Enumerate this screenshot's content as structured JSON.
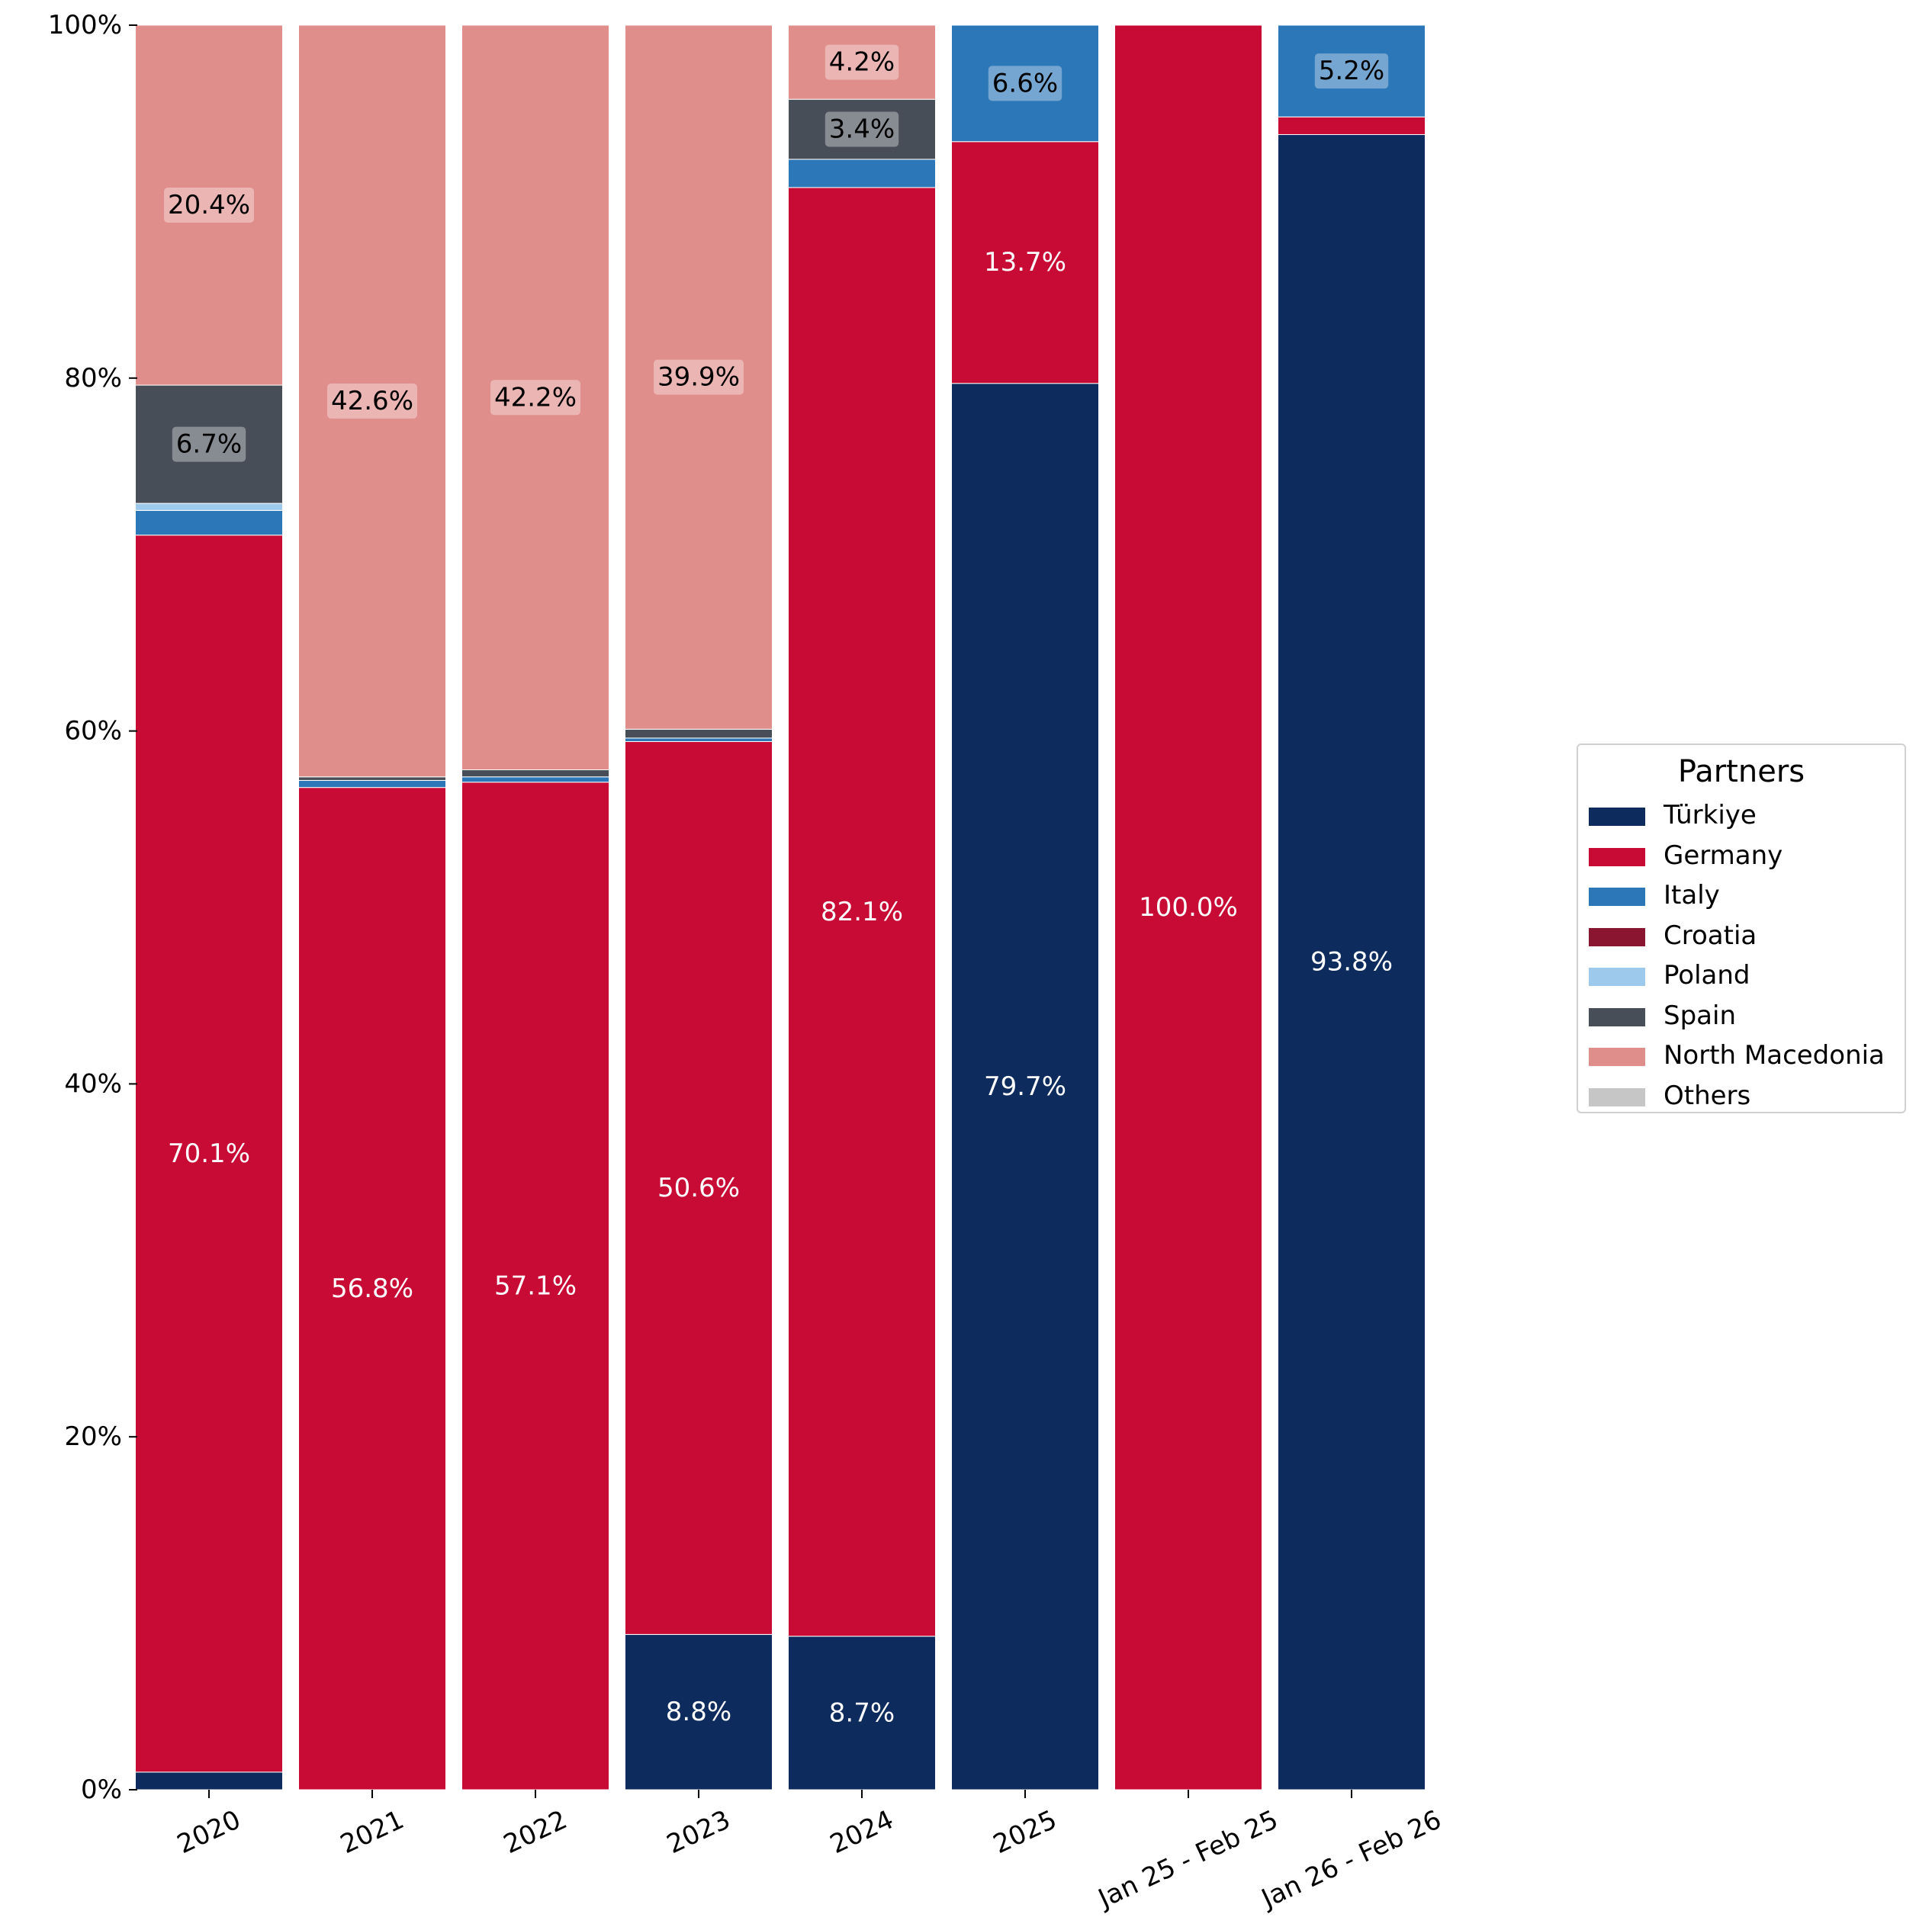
{
  "chart_data": {
    "type": "bar",
    "stacked": true,
    "normalized": true,
    "categories": [
      "2020",
      "2021",
      "2022",
      "2023",
      "2024",
      "2025",
      "Jan 25 - Feb 25",
      "Jan 26 - Feb 26"
    ],
    "ylim": [
      0,
      100
    ],
    "y_ticks": [
      "0%",
      "20%",
      "40%",
      "60%",
      "80%",
      "100%"
    ],
    "y_tick_values": [
      0,
      20,
      40,
      60,
      80,
      100
    ],
    "x_tick_rotation_deg": 25,
    "grid": false,
    "legend": {
      "title": "Partners",
      "position": "right"
    },
    "series": [
      {
        "name": "Türkiye",
        "color": "#0d2b5c",
        "label_color": "#ffffff",
        "values": [
          1.0,
          0.0,
          0.0,
          8.8,
          8.7,
          79.7,
          0.0,
          93.8
        ]
      },
      {
        "name": "Germany",
        "color": "#c80b34",
        "label_color": "#ffffff",
        "values": [
          70.1,
          56.8,
          57.1,
          50.6,
          82.1,
          13.7,
          100.0,
          1.0
        ]
      },
      {
        "name": "Italy",
        "color": "#2c77b8",
        "label_color": "#000000",
        "values": [
          1.4,
          0.4,
          0.3,
          0.2,
          1.6,
          6.6,
          0.0,
          5.2
        ]
      },
      {
        "name": "Croatia",
        "color": "#8a1530",
        "label_color": "#ffffff",
        "values": [
          0.0,
          0.0,
          0.0,
          0.0,
          0.0,
          0.0,
          0.0,
          0.0
        ]
      },
      {
        "name": "Poland",
        "color": "#9dc9ec",
        "label_color": "#000000",
        "values": [
          0.4,
          0.0,
          0.0,
          0.0,
          0.0,
          0.0,
          0.0,
          0.0
        ]
      },
      {
        "name": "Spain",
        "color": "#474e58",
        "label_color": "#000000",
        "values": [
          6.7,
          0.2,
          0.4,
          0.5,
          3.4,
          0.0,
          0.0,
          0.0
        ]
      },
      {
        "name": "North Macedonia",
        "color": "#e08e8b",
        "label_color": "#000000",
        "values": [
          20.4,
          42.6,
          42.2,
          39.9,
          4.2,
          0.0,
          0.0,
          0.0
        ]
      },
      {
        "name": "Others",
        "color": "#c6c6c6",
        "label_color": "#000000",
        "values": [
          0.0,
          0.0,
          0.0,
          0.0,
          0.0,
          0.0,
          0.0,
          0.0
        ]
      }
    ],
    "data_labels": [
      {
        "category": "2020",
        "series": "Germany",
        "text": "70.1%"
      },
      {
        "category": "2020",
        "series": "Spain",
        "text": "6.7%"
      },
      {
        "category": "2020",
        "series": "North Macedonia",
        "text": "20.4%"
      },
      {
        "category": "2021",
        "series": "Germany",
        "text": "56.8%"
      },
      {
        "category": "2021",
        "series": "North Macedonia",
        "text": "42.6%"
      },
      {
        "category": "2022",
        "series": "Germany",
        "text": "57.1%"
      },
      {
        "category": "2022",
        "series": "North Macedonia",
        "text": "42.2%"
      },
      {
        "category": "2023",
        "series": "Türkiye",
        "text": "8.8%"
      },
      {
        "category": "2023",
        "series": "Germany",
        "text": "50.6%"
      },
      {
        "category": "2023",
        "series": "North Macedonia",
        "text": "39.9%"
      },
      {
        "category": "2024",
        "series": "Türkiye",
        "text": "8.7%"
      },
      {
        "category": "2024",
        "series": "Germany",
        "text": "82.1%"
      },
      {
        "category": "2024",
        "series": "Spain",
        "text": "3.4%"
      },
      {
        "category": "2024",
        "series": "North Macedonia",
        "text": "4.2%"
      },
      {
        "category": "2025",
        "series": "Türkiye",
        "text": "79.7%"
      },
      {
        "category": "2025",
        "series": "Germany",
        "text": "13.7%"
      },
      {
        "category": "2025",
        "series": "Italy",
        "text": "6.6%"
      },
      {
        "category": "Jan 25 - Feb 25",
        "series": "Germany",
        "text": "100.0%"
      },
      {
        "category": "Jan 26 - Feb 26",
        "series": "Türkiye",
        "text": "93.8%"
      },
      {
        "category": "Jan 26 - Feb 26",
        "series": "Italy",
        "text": "5.2%"
      }
    ]
  }
}
